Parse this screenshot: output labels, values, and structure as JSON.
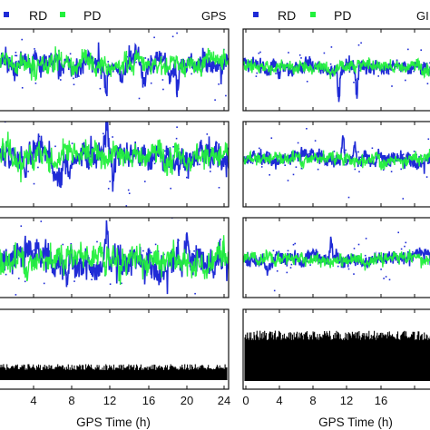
{
  "chart_data": [
    {
      "type": "scatter",
      "column": "left",
      "row": 1,
      "tag": "GPS",
      "legend": [
        {
          "label": "RD",
          "color": "#1f2bd6"
        },
        {
          "label": "PD",
          "color": "#22f03c"
        }
      ],
      "series": [
        {
          "name": "RD",
          "values_description": "dense noisy time series, excursions near 11.5 h and 19.5 h"
        },
        {
          "name": "PD",
          "values_description": "dense noisy time series overlapping RD"
        }
      ]
    },
    {
      "type": "scatter",
      "column": "left",
      "row": 2
    },
    {
      "type": "scatter",
      "column": "left",
      "row": 3
    },
    {
      "type": "line",
      "column": "left",
      "row": 4
    },
    {
      "type": "scatter",
      "column": "right",
      "row": 1,
      "tag": "GI",
      "legend": [
        {
          "label": "RD",
          "color": "#1f2bd6"
        },
        {
          "label": "PD",
          "color": "#22f03c"
        }
      ]
    },
    {
      "type": "scatter",
      "column": "right",
      "row": 2
    },
    {
      "type": "scatter",
      "column": "right",
      "row": 3
    },
    {
      "type": "line",
      "column": "right",
      "row": 4
    }
  ],
  "axes": {
    "left": {
      "xlabel": "GPS Time (h)",
      "xlim": [
        0,
        24
      ],
      "xticks": [
        "4",
        "8",
        "12",
        "16",
        "20",
        "24"
      ]
    },
    "right": {
      "xlabel": "GPS Time (h)",
      "xlim": [
        0,
        24
      ],
      "xticks": [
        "0",
        "4",
        "8",
        "12",
        "16"
      ]
    }
  },
  "colors": {
    "rd": "#1f2bd6",
    "pd": "#22f03c",
    "axis": "#111111",
    "step": "#000000"
  }
}
